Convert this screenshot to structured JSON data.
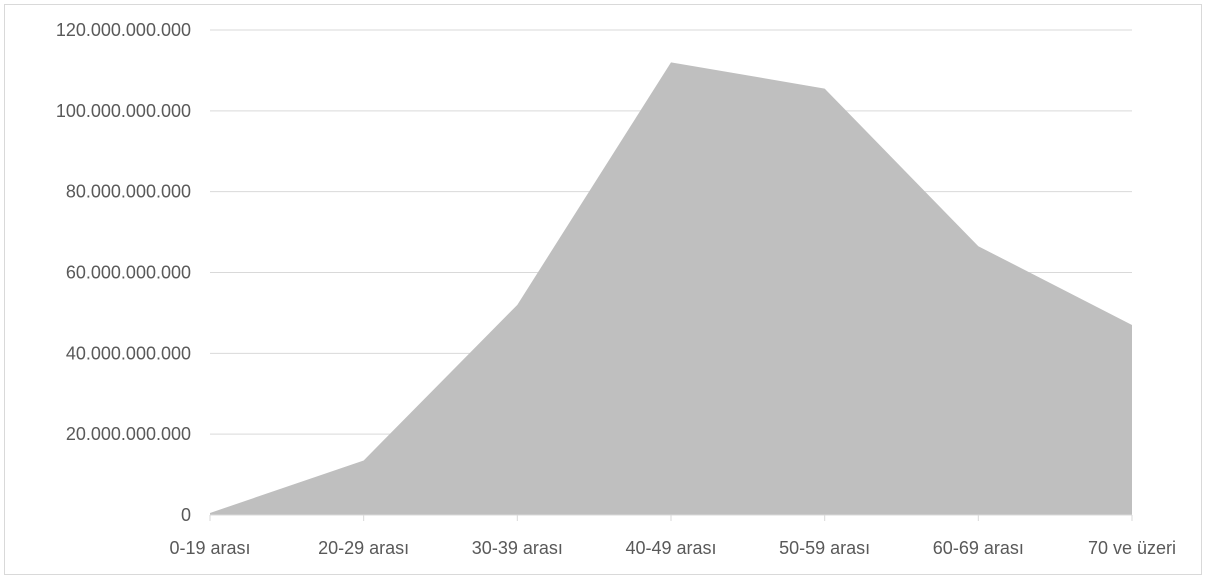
{
  "chart_data": {
    "type": "area",
    "categories": [
      "0-19 arası",
      "20-29 arası",
      "30-39 arası",
      "40-49 arası",
      "50-59 arası",
      "60-69 arası",
      "70 ve üzeri"
    ],
    "series": [
      {
        "values": [
          500000000,
          13500000000,
          52000000000,
          112000000000,
          105500000000,
          66500000000,
          47000000000
        ],
        "color": "#bfbfbf"
      }
    ],
    "yticks": [
      "0",
      "20.000.000.000",
      "40.000.000.000",
      "60.000.000.000",
      "80.000.000.000",
      "100.000.000.000",
      "120.000.000.000"
    ],
    "ylim": [
      0,
      120000000000
    ],
    "grid": true,
    "gridline_color": "#d9d9d9",
    "tick_label_color": "#595959"
  }
}
